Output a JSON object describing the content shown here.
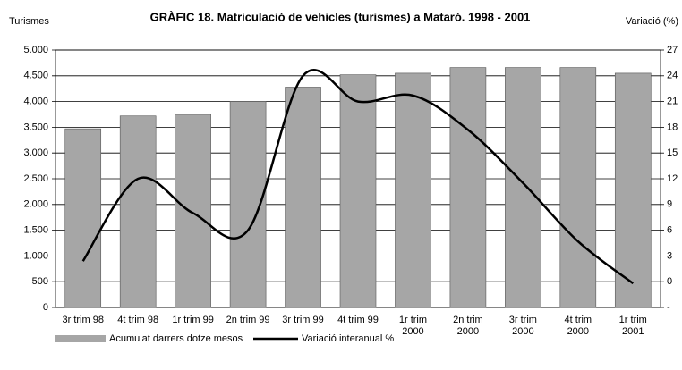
{
  "chart_data": {
    "type": "bar_line",
    "title": "GRÀFIC 18. Matriculació de vehicles (turismes) a Mataró. 1998 - 2001",
    "y_label": "Turismes",
    "y2_label": "Variació (%)",
    "categories": [
      "3r trim 98",
      "4t trim 98",
      "1r trim 99",
      "2n trim 99",
      "3r trim 99",
      "4t trim 99",
      "1r trim\n2000",
      "2n trim\n2000",
      "3r trim\n2000",
      "4t trim\n2000",
      "1r trim\n2001"
    ],
    "series": [
      {
        "name": "Acumulat darrers dotze mesos",
        "type": "bar",
        "color": "#a6a6a6",
        "values": [
          3470,
          3720,
          3750,
          4000,
          4280,
          4520,
          4550,
          4660,
          4660,
          4660,
          4550
        ]
      },
      {
        "name": "Variació interanual %",
        "type": "line",
        "color": "#000000",
        "axis": "y2",
        "values": [
          2.4,
          12,
          8,
          6,
          24,
          21,
          21.7,
          17.7,
          11.5,
          4.7,
          -0.2
        ]
      }
    ],
    "ylim": [
      0,
      5000
    ],
    "yticks": [
      0,
      500,
      {
        "value": 1000,
        "label": "1.000"
      },
      {
        "value": 1500,
        "label": "1.500"
      },
      {
        "value": 2000,
        "label": "2.000"
      },
      {
        "value": 2500,
        "label": "2.500"
      },
      {
        "value": 3000,
        "label": "3.000"
      },
      {
        "value": 3500,
        "label": "3.500"
      },
      {
        "value": 4000,
        "label": "4.000"
      },
      {
        "value": 4500,
        "label": "4.500"
      },
      {
        "value": 5000,
        "label": "5.000"
      }
    ],
    "y2lim": [
      -3,
      27
    ],
    "y2ticks": [
      {
        "value": -3,
        "label": "-"
      },
      0,
      3,
      6,
      9,
      12,
      15,
      18,
      21,
      24,
      27
    ],
    "grid": true,
    "legend": "bottom"
  }
}
